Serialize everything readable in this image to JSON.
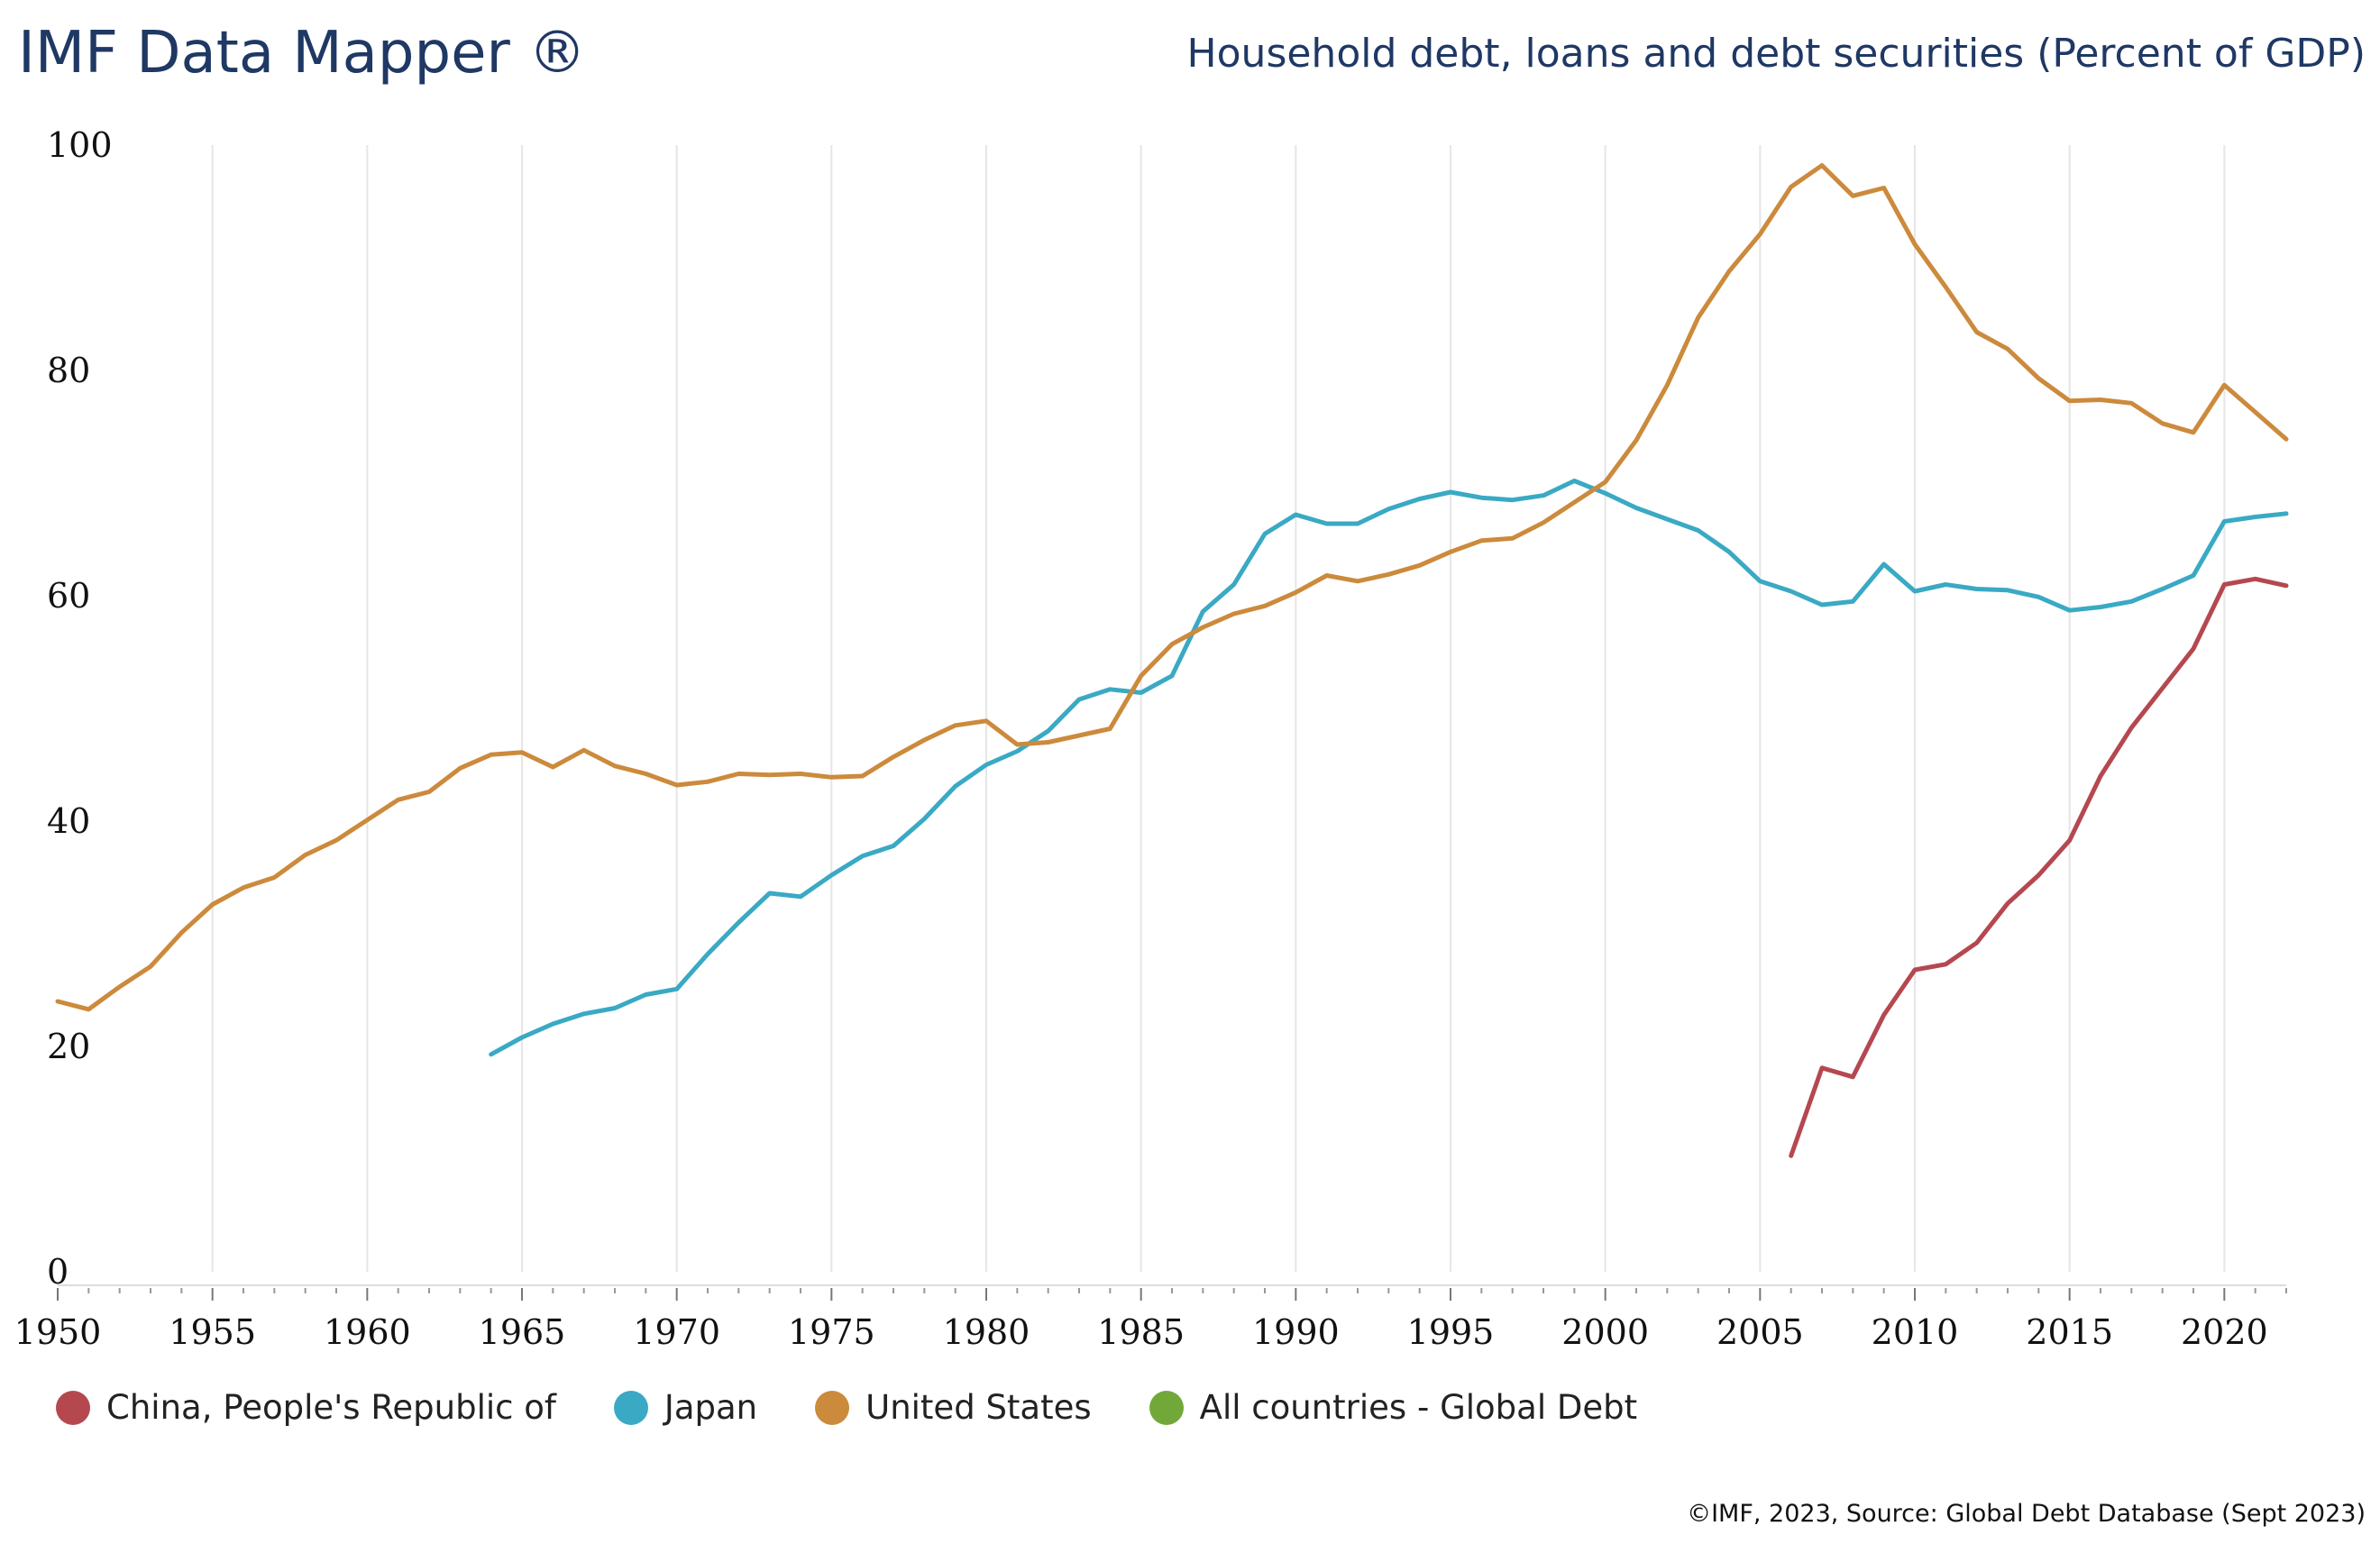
{
  "header": {
    "brand": "IMF Data Mapper ®",
    "title": "Household debt, loans and debt securities (Percent of GDP)"
  },
  "footer": {
    "source": "©IMF, 2023, Source: Global Debt Database (Sept 2023)"
  },
  "chart_data": {
    "type": "line",
    "title": "Household debt, loans and debt securities (Percent of GDP)",
    "xlim": [
      1950,
      2022
    ],
    "ylim": [
      0,
      100
    ],
    "x_ticks": [
      1950,
      1955,
      1960,
      1965,
      1970,
      1975,
      1980,
      1985,
      1990,
      1995,
      2000,
      2005,
      2010,
      2015,
      2020
    ],
    "y_ticks": [
      0,
      20,
      40,
      60,
      80,
      100
    ],
    "grid": "vertical",
    "legend_position": "bottom-left",
    "series": [
      {
        "name": "China, People's Republic of",
        "color": "#b5484f",
        "start_year": 2006,
        "values": [
          10.3,
          18.1,
          17.3,
          22.8,
          26.8,
          27.3,
          29.2,
          32.7,
          35.2,
          38.3,
          44.0,
          48.3,
          51.8,
          55.3,
          61.0,
          61.5,
          60.9
        ]
      },
      {
        "name": "Japan",
        "color": "#3aa9c4",
        "start_year": 1964,
        "values": [
          19.3,
          20.8,
          22.0,
          22.9,
          23.4,
          24.6,
          25.1,
          28.2,
          31.0,
          33.6,
          33.3,
          35.2,
          36.9,
          37.8,
          40.2,
          43.1,
          45.0,
          46.2,
          48.0,
          50.8,
          51.7,
          51.4,
          52.9,
          58.6,
          61.0,
          65.5,
          67.2,
          66.4,
          66.4,
          67.7,
          68.6,
          69.2,
          68.7,
          68.5,
          68.9,
          70.2,
          69.1,
          67.8,
          66.8,
          65.8,
          63.9,
          61.3,
          60.4,
          59.2,
          59.5,
          62.8,
          60.4,
          61.0,
          60.6,
          60.5,
          59.9,
          58.7,
          59.0,
          59.5,
          60.6,
          61.8,
          66.6,
          67.0,
          67.3
        ]
      },
      {
        "name": "United States",
        "color": "#cc8a3c",
        "start_year": 1950,
        "values": [
          24.0,
          23.3,
          25.3,
          27.1,
          30.1,
          32.6,
          34.1,
          35.0,
          37.0,
          38.3,
          40.1,
          41.9,
          42.6,
          44.7,
          45.9,
          46.1,
          44.8,
          46.3,
          44.9,
          44.2,
          43.2,
          43.5,
          44.2,
          44.1,
          44.2,
          43.9,
          44.0,
          45.7,
          47.2,
          48.5,
          48.9,
          46.8,
          47.0,
          47.6,
          48.2,
          52.9,
          55.7,
          57.2,
          58.4,
          59.1,
          60.3,
          61.8,
          61.3,
          61.9,
          62.7,
          63.9,
          64.9,
          65.1,
          66.5,
          68.3,
          70.1,
          73.8,
          78.7,
          84.7,
          88.8,
          92.1,
          96.3,
          98.2,
          95.5,
          96.2,
          91.2,
          87.4,
          83.4,
          81.9,
          79.3,
          77.3,
          77.4,
          77.1,
          75.3,
          74.5,
          78.7,
          76.3,
          73.9
        ]
      },
      {
        "name": "All countries - Global Debt",
        "color": "#72a83a",
        "start_year": 2022,
        "values": []
      }
    ]
  }
}
